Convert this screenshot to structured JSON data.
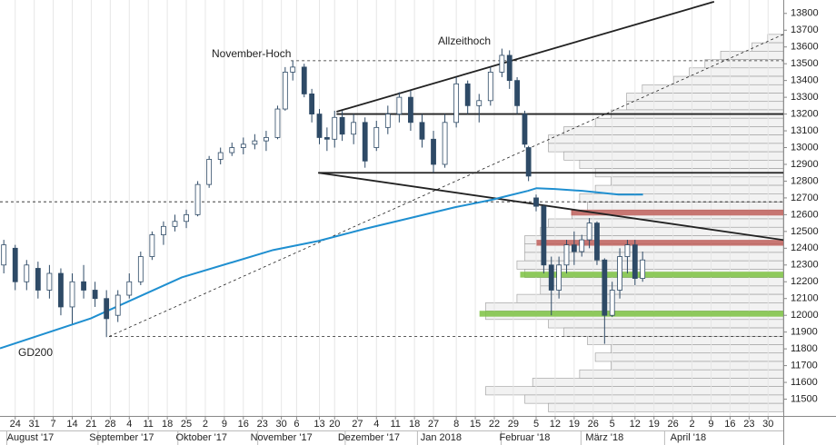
{
  "chart_data": {
    "type": "candlestick",
    "x": [
      1,
      4,
      7,
      10,
      13,
      16,
      19,
      22,
      25,
      28,
      31,
      34,
      37,
      40,
      43,
      46,
      49,
      52,
      55,
      58,
      61,
      64,
      67,
      70,
      73,
      75,
      77,
      80,
      82,
      84,
      86,
      88,
      90,
      93,
      96,
      99,
      102,
      105,
      108,
      111,
      114,
      117,
      120,
      123,
      126,
      129,
      132,
      134,
      136,
      138,
      139,
      141,
      143,
      145,
      147,
      149,
      151,
      153,
      155,
      157,
      159,
      161,
      163,
      165,
      167,
      169
    ],
    "open": [
      12300,
      12400,
      12200,
      12280,
      12150,
      12250,
      12050,
      12200,
      12150,
      12100,
      12000,
      12120,
      12200,
      12350,
      12480,
      12530,
      12560,
      12600,
      12780,
      12930,
      12970,
      13000,
      13020,
      13040,
      13060,
      13230,
      13450,
      13480,
      13320,
      13200,
      13060,
      13050,
      13180,
      13080,
      13150,
      13000,
      13120,
      13200,
      13300,
      13150,
      13050,
      12900,
      13150,
      13380,
      13250,
      13280,
      13450,
      13550,
      13400,
      13200,
      13000,
      12700,
      12650,
      12300,
      12150,
      12300,
      12420,
      12380,
      12450,
      12550,
      12330,
      12000,
      12150,
      12350,
      12420,
      12220
    ],
    "high": [
      12450,
      12420,
      12330,
      12320,
      12300,
      12280,
      12250,
      12300,
      12200,
      12150,
      12150,
      12250,
      12380,
      12500,
      12560,
      12600,
      12630,
      12800,
      12950,
      13000,
      13030,
      13060,
      13080,
      13100,
      13250,
      13480,
      13520,
      13500,
      13350,
      13230,
      13120,
      13220,
      13220,
      13200,
      13180,
      13160,
      13250,
      13330,
      13340,
      13200,
      13100,
      13200,
      13420,
      13400,
      13320,
      13480,
      13590,
      13580,
      13420,
      13220,
      13010,
      12720,
      12660,
      12350,
      12350,
      12450,
      12500,
      12480,
      12580,
      12560,
      12340,
      12200,
      12400,
      12450,
      12450,
      12380
    ],
    "low": [
      12250,
      12150,
      12150,
      12100,
      12100,
      12000,
      11950,
      12100,
      12050,
      11870,
      11960,
      12100,
      12180,
      12330,
      12420,
      12500,
      12520,
      12590,
      12760,
      12900,
      12950,
      12960,
      12990,
      12980,
      13050,
      13220,
      13400,
      13300,
      13150,
      13020,
      12980,
      13000,
      13040,
      13020,
      12880,
      12980,
      13080,
      13150,
      13100,
      13000,
      12850,
      12880,
      13120,
      13200,
      13150,
      13250,
      13420,
      13350,
      13200,
      13000,
      12800,
      12620,
      12250,
      12000,
      12100,
      12250,
      12300,
      12350,
      12400,
      12300,
      11830,
      11990,
      12100,
      12250,
      12180,
      12200
    ],
    "close": [
      12420,
      12200,
      12300,
      12150,
      12250,
      12050,
      12200,
      12150,
      12100,
      11980,
      12120,
      12200,
      12350,
      12480,
      12530,
      12560,
      12600,
      12780,
      12930,
      12970,
      13000,
      13020,
      13040,
      13060,
      13230,
      13450,
      13480,
      13320,
      13200,
      13060,
      13050,
      13180,
      13080,
      13150,
      12920,
      13120,
      13200,
      13300,
      13150,
      13050,
      12900,
      13150,
      13380,
      13250,
      13280,
      13450,
      13550,
      13400,
      13250,
      13020,
      12830,
      12650,
      12300,
      12150,
      12300,
      12420,
      12380,
      12450,
      12550,
      12330,
      12000,
      12150,
      12350,
      12420,
      12220,
      12330
    ],
    "up_color": "#ffffff",
    "down_color": "#2e4a66",
    "xlim": [
      0,
      206
    ],
    "ylim": [
      11400,
      13880
    ],
    "yticks": [
      11500,
      11600,
      11700,
      11800,
      11900,
      12000,
      12100,
      12200,
      12300,
      12400,
      12500,
      12600,
      12700,
      12800,
      12900,
      13000,
      13100,
      13200,
      13300,
      13400,
      13500,
      13600,
      13700,
      13800
    ],
    "xticks": [
      {
        "value": 4,
        "label": "24"
      },
      {
        "value": 9,
        "label": "31"
      },
      {
        "value": 14,
        "label": "7"
      },
      {
        "value": 19,
        "label": "14"
      },
      {
        "value": 24,
        "label": "21"
      },
      {
        "value": 29,
        "label": "28"
      },
      {
        "value": 34,
        "label": "4"
      },
      {
        "value": 39,
        "label": "11"
      },
      {
        "value": 44,
        "label": "18"
      },
      {
        "value": 49,
        "label": "25"
      },
      {
        "value": 54,
        "label": "2"
      },
      {
        "value": 59,
        "label": "9"
      },
      {
        "value": 64,
        "label": "16"
      },
      {
        "value": 69,
        "label": "23"
      },
      {
        "value": 74,
        "label": "30"
      },
      {
        "value": 78,
        "label": "6"
      },
      {
        "value": 84,
        "label": "13"
      },
      {
        "value": 88,
        "label": "20"
      },
      {
        "value": 94,
        "label": "27"
      },
      {
        "value": 99,
        "label": "4"
      },
      {
        "value": 104,
        "label": "11"
      },
      {
        "value": 109,
        "label": "18"
      },
      {
        "value": 114,
        "label": "27"
      },
      {
        "value": 120,
        "label": "8"
      },
      {
        "value": 125,
        "label": "15"
      },
      {
        "value": 130,
        "label": "22"
      },
      {
        "value": 135,
        "label": "29"
      },
      {
        "value": 141,
        "label": "5"
      },
      {
        "value": 146,
        "label": "12"
      },
      {
        "value": 151,
        "label": "19"
      },
      {
        "value": 156,
        "label": "26"
      },
      {
        "value": 161,
        "label": "5"
      },
      {
        "value": 167,
        "label": "12"
      },
      {
        "value": 172,
        "label": "19"
      },
      {
        "value": 177,
        "label": "26"
      },
      {
        "value": 182,
        "label": "2"
      },
      {
        "value": 187,
        "label": "9"
      },
      {
        "value": 192,
        "label": "16"
      },
      {
        "value": 197,
        "label": "23"
      },
      {
        "value": 202,
        "label": "30"
      }
    ],
    "month_labels": [
      {
        "value": 8,
        "label": "August '17"
      },
      {
        "value": 32,
        "label": "September '17"
      },
      {
        "value": 53,
        "label": "Oktober '17"
      },
      {
        "value": 74,
        "label": "November '17"
      },
      {
        "value": 97,
        "label": "Dezember '17"
      },
      {
        "value": 116,
        "label": "Jan 2018"
      },
      {
        "value": 138,
        "label": "Februar '18"
      },
      {
        "value": 159,
        "label": "März '18"
      },
      {
        "value": 181,
        "label": "April '18"
      }
    ],
    "grid": true,
    "moving_averages": [
      {
        "name": "GD200",
        "color": "#1f8fd0",
        "x": [
          0,
          23.9,
          47.8,
          71.8,
          83.7,
          95.7,
          107.7,
          119.6,
          129.2,
          134,
          138.8
        ],
        "values": [
          11803,
          11982,
          12226,
          12389,
          12443,
          12514,
          12579,
          12644,
          12688,
          12715,
          12742
        ]
      },
      {
        "color": "#1f8fd0",
        "x": [
          138.8,
          141.1,
          145.9,
          153.1,
          162.7,
          169.1
        ],
        "values": [
          12742,
          12758,
          12753,
          12742,
          12720,
          12720
        ]
      }
    ],
    "lines": [
      {
        "style": "solid",
        "x": [
          88.5,
          187.8
        ],
        "y": [
          13214,
          13870
        ]
      },
      {
        "style": "solid",
        "x": [
          88.5,
          206
        ],
        "y": [
          13200,
          13200
        ]
      },
      {
        "style": "solid",
        "x": [
          83.7,
          206
        ],
        "y": [
          12850,
          12850
        ]
      },
      {
        "style": "solid",
        "x": [
          83.7,
          206
        ],
        "y": [
          12850,
          12449
        ]
      },
      {
        "style": "dashed",
        "x": [
          76.5,
          206
        ],
        "y": [
          13518,
          13518
        ]
      },
      {
        "style": "dashed",
        "x": [
          0,
          206
        ],
        "y": [
          12677,
          12677
        ]
      },
      {
        "style": "dashed",
        "x": [
          28.7,
          206
        ],
        "y": [
          11874,
          11874
        ]
      },
      {
        "style": "dashed",
        "x": [
          28.7,
          206
        ],
        "y": [
          11874,
          13675
        ]
      }
    ],
    "zones": [
      {
        "color": "#c0605c",
        "x": [
          150.2,
          206
        ],
        "y": [
          12595,
          12630
        ]
      },
      {
        "color": "#c0605c",
        "x": [
          141.1,
          206
        ],
        "y": [
          12415,
          12450
        ]
      },
      {
        "color": "#7cc242",
        "x": [
          136.8,
          206
        ],
        "y": [
          12225,
          12260
        ]
      },
      {
        "color": "#7cc242",
        "x": [
          126.1,
          206
        ],
        "y": [
          11992,
          12027
        ]
      }
    ],
    "volume_profile": {
      "color": "#f2f2f2",
      "lim": [
        0,
        100
      ],
      "levels": [
        13650,
        13600,
        13550,
        13500,
        13450,
        13400,
        13350,
        13300,
        13250,
        13200,
        13150,
        13100,
        13050,
        13000,
        12950,
        12900,
        12850,
        12800,
        12750,
        12700,
        12650,
        12600,
        12550,
        12500,
        12450,
        12400,
        12350,
        12300,
        12250,
        12200,
        12150,
        12100,
        12050,
        12000,
        11950,
        11900,
        11850,
        11800,
        11750,
        11700,
        11650,
        11600,
        11550,
        11500,
        11450
      ],
      "values": [
        2,
        4,
        8,
        10,
        12,
        14,
        18,
        20,
        20,
        22,
        24,
        28,
        30,
        30,
        28,
        26,
        24,
        22,
        24,
        26,
        25,
        27,
        30,
        31,
        33,
        33,
        33,
        34,
        33,
        31,
        31,
        34,
        38,
        38,
        30,
        28,
        25,
        22,
        24,
        22,
        26,
        32,
        38,
        33,
        30
      ]
    },
    "annotations": [
      "November-Hoch",
      "Allzeithoch"
    ]
  }
}
